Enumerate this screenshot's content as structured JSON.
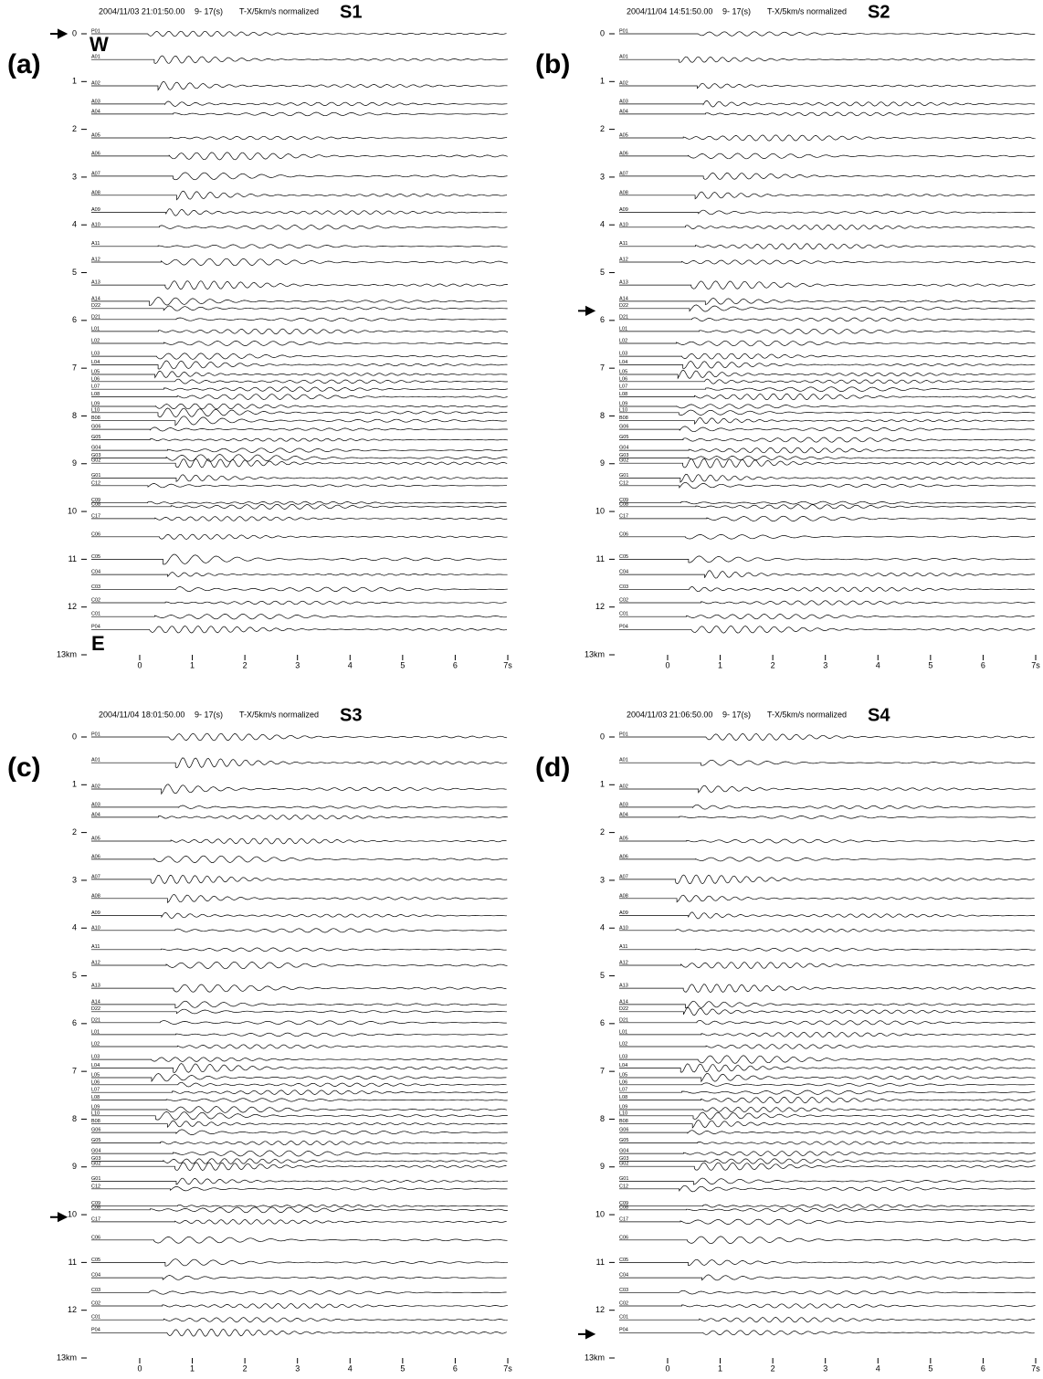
{
  "annotations": {
    "west": "W",
    "east": "E"
  },
  "stations": [
    {
      "name": "P01",
      "km": 0.0
    },
    {
      "name": "A01",
      "km": 0.54
    },
    {
      "name": "A02",
      "km": 1.09
    },
    {
      "name": "A03",
      "km": 1.47
    },
    {
      "name": "A04",
      "km": 1.68
    },
    {
      "name": "A05",
      "km": 2.18
    },
    {
      "name": "A06",
      "km": 2.56
    },
    {
      "name": "A07",
      "km": 2.98
    },
    {
      "name": "A08",
      "km": 3.38
    },
    {
      "name": "A09",
      "km": 3.74
    },
    {
      "name": "A10",
      "km": 4.05
    },
    {
      "name": "A11",
      "km": 4.45
    },
    {
      "name": "A12",
      "km": 4.78
    },
    {
      "name": "A13",
      "km": 5.26
    },
    {
      "name": "A14",
      "km": 5.6
    },
    {
      "name": "D22",
      "km": 5.75
    },
    {
      "name": "D21",
      "km": 5.98
    },
    {
      "name": "L01",
      "km": 6.23
    },
    {
      "name": "L02",
      "km": 6.48
    },
    {
      "name": "L03",
      "km": 6.75
    },
    {
      "name": "L04",
      "km": 6.93
    },
    {
      "name": "L05",
      "km": 7.13
    },
    {
      "name": "L06",
      "km": 7.28
    },
    {
      "name": "L07",
      "km": 7.44
    },
    {
      "name": "L08",
      "km": 7.6
    },
    {
      "name": "L09",
      "km": 7.8
    },
    {
      "name": "L10",
      "km": 7.93
    },
    {
      "name": "B08",
      "km": 8.1
    },
    {
      "name": "G06",
      "km": 8.28
    },
    {
      "name": "G05",
      "km": 8.5
    },
    {
      "name": "G04",
      "km": 8.72
    },
    {
      "name": "G03",
      "km": 8.88
    },
    {
      "name": "G02",
      "km": 8.99
    },
    {
      "name": "G01",
      "km": 9.3
    },
    {
      "name": "C12",
      "km": 9.46
    },
    {
      "name": "C09",
      "km": 9.82
    },
    {
      "name": "C08",
      "km": 9.9
    },
    {
      "name": "C17",
      "km": 10.15
    },
    {
      "name": "C06",
      "km": 10.53
    },
    {
      "name": "C05",
      "km": 11.0
    },
    {
      "name": "C04",
      "km": 11.32
    },
    {
      "name": "C03",
      "km": 11.63
    },
    {
      "name": "C02",
      "km": 11.91
    },
    {
      "name": "C01",
      "km": 12.2
    },
    {
      "name": "P04",
      "km": 12.47
    }
  ],
  "chart_data": [
    {
      "type": "record-section",
      "panel": "(a)",
      "datetime": "2004/11/03 21:01:50.00",
      "window": "9- 17(s)",
      "method": "T-X/5km/s normalized",
      "event": "S1",
      "arrow_km": 0,
      "ylim": [
        0,
        13
      ],
      "yticks": [
        0,
        1,
        2,
        3,
        4,
        5,
        6,
        7,
        8,
        9,
        10,
        11,
        12,
        {
          "value": 13,
          "label": "13km"
        }
      ],
      "xlim": [
        -0.92,
        7
      ],
      "xticks": [
        0,
        1,
        2,
        3,
        4,
        5,
        6,
        {
          "value": 7,
          "label": "7s"
        }
      ]
    },
    {
      "type": "record-section",
      "panel": "(b)",
      "datetime": "2004/11/04 14:51:50.00",
      "window": "9- 17(s)",
      "method": "T-X/5km/s normalized",
      "event": "S2",
      "arrow_km": 5.8,
      "ylim": [
        0,
        13
      ],
      "yticks": [
        0,
        1,
        2,
        3,
        4,
        5,
        6,
        7,
        8,
        9,
        10,
        11,
        12,
        {
          "value": 13,
          "label": "13km"
        }
      ],
      "xlim": [
        -0.92,
        7
      ],
      "xticks": [
        0,
        1,
        2,
        3,
        4,
        5,
        6,
        {
          "value": 7,
          "label": "7s"
        }
      ]
    },
    {
      "type": "record-section",
      "panel": "(c)",
      "datetime": "2004/11/04 18:01:50.00",
      "window": "9- 17(s)",
      "method": "T-X/5km/s normalized",
      "event": "S3",
      "arrow_km": 10.05,
      "ylim": [
        0,
        13
      ],
      "yticks": [
        0,
        1,
        2,
        3,
        4,
        5,
        6,
        7,
        8,
        9,
        10,
        11,
        12,
        {
          "value": 13,
          "label": "13km"
        }
      ],
      "xlim": [
        -0.92,
        7
      ],
      "xticks": [
        0,
        1,
        2,
        3,
        4,
        5,
        6,
        {
          "value": 7,
          "label": "7s"
        }
      ]
    },
    {
      "type": "record-section",
      "panel": "(d)",
      "datetime": "2004/11/03 21:06:50.00",
      "window": "9- 17(s)",
      "method": "T-X/5km/s normalized",
      "event": "S4",
      "arrow_km": 12.5,
      "ylim": [
        0,
        13
      ],
      "yticks": [
        0,
        1,
        2,
        3,
        4,
        5,
        6,
        7,
        8,
        9,
        10,
        11,
        12,
        {
          "value": 13,
          "label": "13km"
        }
      ],
      "xlim": [
        -0.92,
        7
      ],
      "xticks": [
        0,
        1,
        2,
        3,
        4,
        5,
        6,
        {
          "value": 7,
          "label": "7s"
        }
      ]
    }
  ]
}
